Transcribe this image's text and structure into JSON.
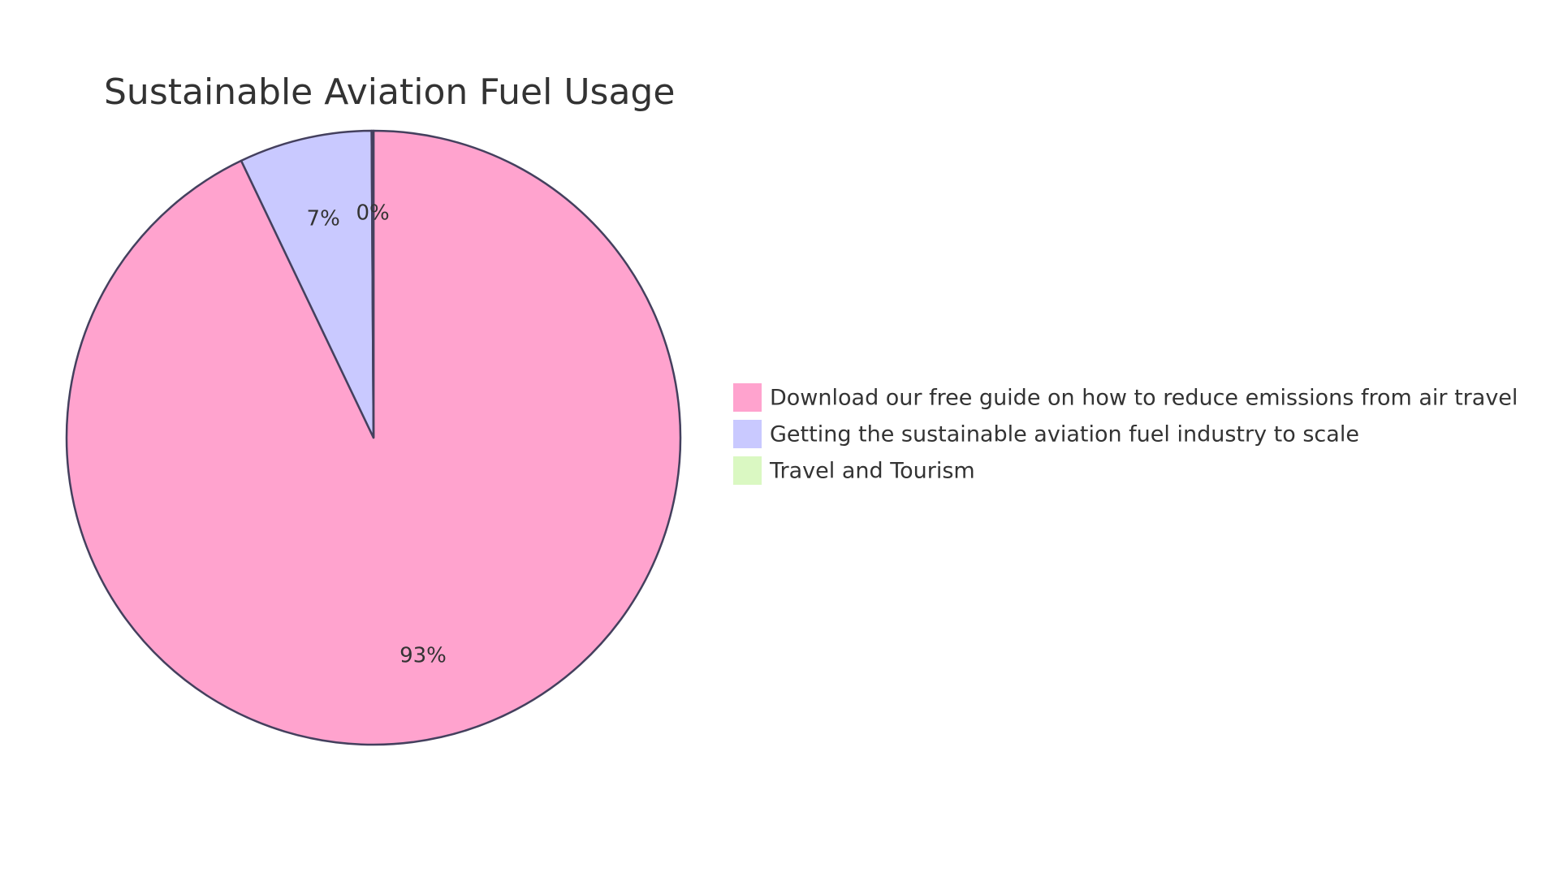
{
  "chart_data": {
    "type": "pie",
    "title": "Sustainable Aviation Fuel Usage",
    "categories": [
      "Download our free guide on how to reduce emissions from air travel",
      "Getting the sustainable aviation fuel industry to scale",
      "Travel and Tourism"
    ],
    "values": [
      93,
      7,
      0.1
    ],
    "value_labels": [
      "93%",
      "7%",
      "0%"
    ],
    "colors": [
      "#ffa3ce",
      "#c9c9ff",
      "#daf8c2"
    ]
  }
}
